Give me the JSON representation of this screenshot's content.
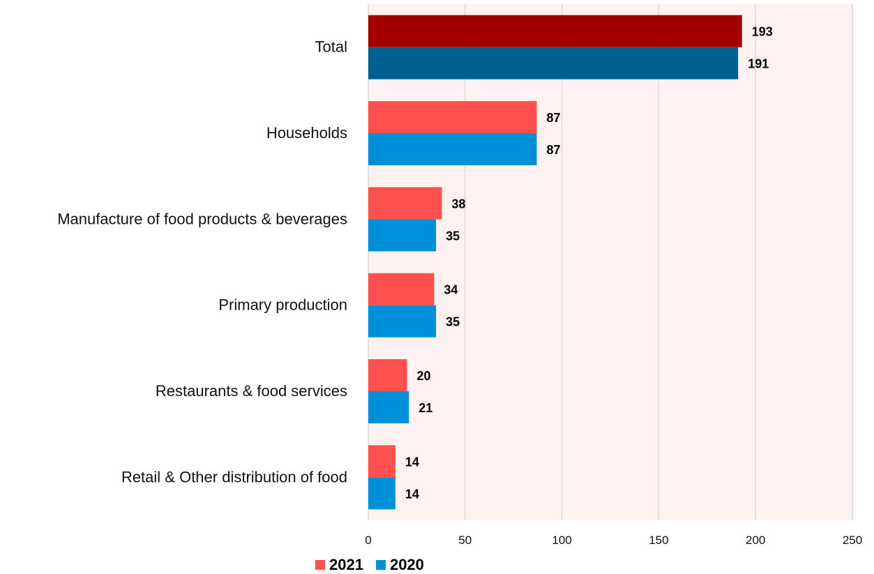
{
  "chart_data": {
    "type": "bar",
    "orientation": "horizontal",
    "categories": [
      "Total",
      "Households",
      "Manufacture of food products & beverages",
      "Primary production",
      "Restaurants & food services",
      "Retail & Other distribution of food"
    ],
    "series": [
      {
        "name": "2021",
        "color": "#ff5050",
        "values": [
          193,
          87,
          38,
          34,
          20,
          14
        ]
      },
      {
        "name": "2020",
        "color": "#0090d9",
        "values": [
          191,
          87,
          35,
          35,
          21,
          14
        ]
      }
    ],
    "highlight_colors": {
      "2021": "#a50000",
      "2020": "#00608f"
    },
    "highlight_category": "Total",
    "xlim": [
      0,
      250
    ],
    "xticks": [
      0,
      50,
      100,
      150,
      200,
      250
    ],
    "grid": true,
    "legend_position": "bottom",
    "plot_background": "#fdf2ef",
    "grid_color": "#d9d9d9",
    "title": "",
    "xlabel": "",
    "ylabel": ""
  }
}
